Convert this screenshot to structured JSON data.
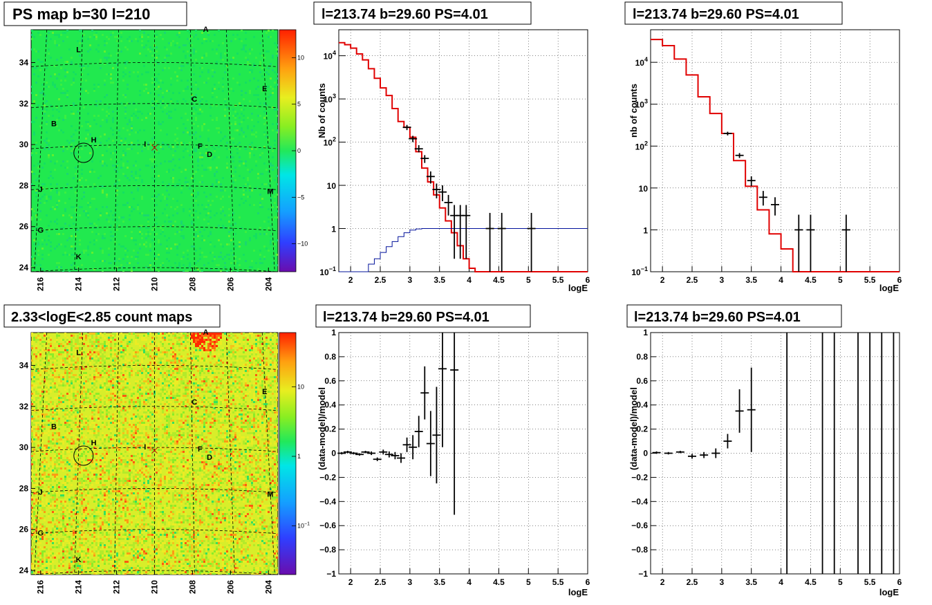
{
  "chart_data": [
    {
      "type": "heatmap",
      "title": "PS map b=30 l=210",
      "x_ticks": [
        "216",
        "214",
        "212",
        "210",
        "208",
        "206",
        "204"
      ],
      "y_ticks": [
        "24",
        "26",
        "28",
        "30",
        "32",
        "34"
      ],
      "xlim": [
        216.5,
        203.5
      ],
      "ylim": [
        23.8,
        35.6
      ],
      "colorbar_ticks": [
        "10",
        "5",
        "0",
        "−5",
        "−10"
      ],
      "colorbar_values": [
        10,
        5,
        0,
        -5,
        -10
      ],
      "colorbar_range": [
        -13,
        13
      ],
      "sources": [
        {
          "label": "A",
          "l": 207.3,
          "b": 35.5
        },
        {
          "label": "L",
          "l": 214.0,
          "b": 34.5
        },
        {
          "label": "E",
          "l": 204.2,
          "b": 32.6
        },
        {
          "label": "C",
          "l": 207.9,
          "b": 32.1
        },
        {
          "label": "B",
          "l": 215.3,
          "b": 30.9
        },
        {
          "label": "H",
          "l": 213.2,
          "b": 30.1
        },
        {
          "label": "I",
          "l": 210.5,
          "b": 29.9
        },
        {
          "label": "F",
          "l": 207.6,
          "b": 29.8
        },
        {
          "label": "D",
          "l": 207.1,
          "b": 29.4
        },
        {
          "label": "J",
          "l": 216.0,
          "b": 27.7
        },
        {
          "label": "M",
          "l": 203.9,
          "b": 27.6
        },
        {
          "label": "G",
          "l": 216.0,
          "b": 25.7
        },
        {
          "label": "K",
          "l": 214.0,
          "b": 24.4
        }
      ],
      "circle": {
        "l": 213.74,
        "b": 29.6
      },
      "cross": {
        "l": 210.0,
        "b": 29.85
      }
    },
    {
      "type": "line",
      "title": "l=213.74 b=29.60 PS=4.01",
      "xlabel": "logE",
      "ylabel": "Nb of counts",
      "log_y": true,
      "xlim": [
        1.8,
        6.0
      ],
      "ylim": [
        0.1,
        40000
      ],
      "x_ticks": [
        "2",
        "2.5",
        "3",
        "3.5",
        "4",
        "4.5",
        "5",
        "5.5",
        "6"
      ],
      "y_ticks": [
        {
          "v": 0.1,
          "label": "10",
          "sup": "−1"
        },
        {
          "v": 1,
          "label": "1",
          "sup": ""
        },
        {
          "v": 10,
          "label": "10",
          "sup": ""
        },
        {
          "v": 100,
          "label": "10",
          "sup": "2"
        },
        {
          "v": 1000,
          "label": "10",
          "sup": "3"
        },
        {
          "v": 10000,
          "label": "10",
          "sup": "4"
        }
      ],
      "model_edges": [
        1.8,
        1.9,
        2.0,
        2.1,
        2.2,
        2.3,
        2.4,
        2.5,
        2.6,
        2.7,
        2.8,
        2.9,
        3.0,
        3.1,
        3.2,
        3.3,
        3.4,
        3.5,
        3.6,
        3.7,
        3.8,
        3.9,
        4.0,
        4.1,
        4.2,
        4.3,
        4.4,
        4.5,
        4.6,
        4.7,
        4.8,
        4.9,
        5.0,
        5.1,
        5.2,
        5.3,
        5.4,
        5.5,
        5.6,
        5.7,
        5.8,
        5.9,
        6.0
      ],
      "model_values": [
        20000,
        18000,
        15000,
        11000,
        8000,
        5000,
        3000,
        1800,
        1200,
        600,
        300,
        220,
        130,
        60,
        25,
        12,
        6,
        3,
        1.5,
        0.8,
        0.4,
        0.2,
        0.12,
        0.1,
        0.1,
        0.1,
        0.1,
        0.1,
        0.1,
        0.1,
        0.1,
        0.1,
        0.1,
        0.1,
        0.1,
        0.1,
        0.1,
        0.1,
        0.1,
        0.1,
        0.1,
        0.1
      ],
      "bg_values": [
        0.05,
        0.05,
        0.05,
        0.05,
        0.1,
        0.15,
        0.2,
        0.28,
        0.38,
        0.5,
        0.65,
        0.8,
        0.92,
        0.98,
        1,
        1,
        1,
        1,
        1,
        1,
        1,
        1,
        1,
        1,
        1,
        1,
        1,
        1,
        1,
        1,
        1,
        1,
        1,
        1,
        1,
        1,
        1,
        1,
        1,
        1,
        1,
        1
      ],
      "data_points": [
        {
          "x": 2.95,
          "y": 220,
          "lo": 190,
          "hi": 250
        },
        {
          "x": 3.05,
          "y": 120,
          "lo": 100,
          "hi": 140
        },
        {
          "x": 3.15,
          "y": 70,
          "lo": 58,
          "hi": 85
        },
        {
          "x": 3.25,
          "y": 42,
          "lo": 33,
          "hi": 50
        },
        {
          "x": 3.35,
          "y": 16,
          "lo": 11,
          "hi": 21
        },
        {
          "x": 3.45,
          "y": 8,
          "lo": 5,
          "hi": 11
        },
        {
          "x": 3.55,
          "y": 7,
          "lo": 4.3,
          "hi": 10
        },
        {
          "x": 3.65,
          "y": 4,
          "lo": 2,
          "hi": 6
        },
        {
          "x": 3.75,
          "y": 2,
          "lo": 0.2,
          "hi": 3.5
        },
        {
          "x": 3.85,
          "y": 2,
          "lo": 0.2,
          "hi": 3.5
        },
        {
          "x": 3.95,
          "y": 2,
          "lo": 0.2,
          "hi": 3.5
        },
        {
          "x": 4.35,
          "y": 1,
          "lo": 0.1,
          "hi": 2.3
        },
        {
          "x": 4.55,
          "y": 1,
          "lo": 0.1,
          "hi": 2.3
        },
        {
          "x": 5.05,
          "y": 1,
          "lo": 0.1,
          "hi": 2.3
        }
      ]
    },
    {
      "type": "line",
      "title": "l=213.74 b=29.60 PS=4.01",
      "xlabel": "logE",
      "ylabel": "nb of counts",
      "log_y": true,
      "xlim": [
        1.8,
        6.0
      ],
      "ylim": [
        0.1,
        60000
      ],
      "x_ticks": [
        "2",
        "2.5",
        "3",
        "3.5",
        "4",
        "4.5",
        "5",
        "5.5",
        "6"
      ],
      "y_ticks": [
        {
          "v": 0.1,
          "label": "10",
          "sup": "−1"
        },
        {
          "v": 1,
          "label": "1",
          "sup": ""
        },
        {
          "v": 10,
          "label": "10",
          "sup": ""
        },
        {
          "v": 100,
          "label": "10",
          "sup": "2"
        },
        {
          "v": 1000,
          "label": "10",
          "sup": "3"
        },
        {
          "v": 10000,
          "label": "10",
          "sup": "4"
        }
      ],
      "model_edges": [
        1.8,
        2.0,
        2.2,
        2.4,
        2.6,
        2.8,
        3.0,
        3.2,
        3.4,
        3.6,
        3.8,
        4.0,
        4.2,
        4.4,
        4.6,
        4.8,
        5.0,
        5.2,
        5.4,
        5.6,
        5.8,
        6.0
      ],
      "model_values": [
        35000,
        25000,
        12000,
        5000,
        1500,
        600,
        200,
        45,
        11,
        3,
        0.8,
        0.35,
        0.1,
        0.1,
        0.1,
        0.1,
        0.1,
        0.1,
        0.1,
        0.1,
        0.1
      ],
      "bg_values": [],
      "data_points": [
        {
          "x": 3.1,
          "y": 200,
          "lo": 180,
          "hi": 220
        },
        {
          "x": 3.3,
          "y": 60,
          "lo": 52,
          "hi": 68
        },
        {
          "x": 3.5,
          "y": 15,
          "lo": 11,
          "hi": 19
        },
        {
          "x": 3.7,
          "y": 6,
          "lo": 3.8,
          "hi": 8.5
        },
        {
          "x": 3.9,
          "y": 4,
          "lo": 2.2,
          "hi": 6
        },
        {
          "x": 4.3,
          "y": 1,
          "lo": 0.1,
          "hi": 2.3
        },
        {
          "x": 4.5,
          "y": 1,
          "lo": 0.1,
          "hi": 2.3
        },
        {
          "x": 5.1,
          "y": 1,
          "lo": 0.1,
          "hi": 2.3
        }
      ]
    },
    {
      "type": "heatmap",
      "title": "2.33<logE<2.85 count maps",
      "x_ticks": [
        "216",
        "214",
        "212",
        "210",
        "208",
        "206",
        "204"
      ],
      "y_ticks": [
        "24",
        "26",
        "28",
        "30",
        "32",
        "34"
      ],
      "xlim": [
        216.5,
        203.5
      ],
      "ylim": [
        23.8,
        35.6
      ],
      "colorbar_ticks": [
        "10",
        "1"
      ],
      "colorbar_values": [
        10,
        1
      ],
      "colorbar_extra": {
        "label": "10",
        "sup": "−1",
        "v": 0.1
      },
      "colorbar_log_range": [
        0.02,
        60
      ],
      "sources": [
        {
          "label": "A",
          "l": 207.3,
          "b": 35.5
        },
        {
          "label": "L",
          "l": 214.0,
          "b": 34.5
        },
        {
          "label": "E",
          "l": 204.2,
          "b": 32.6
        },
        {
          "label": "C",
          "l": 207.9,
          "b": 32.1
        },
        {
          "label": "B",
          "l": 215.3,
          "b": 30.9
        },
        {
          "label": "H",
          "l": 213.2,
          "b": 30.1
        },
        {
          "label": "I",
          "l": 210.5,
          "b": 29.9
        },
        {
          "label": "F",
          "l": 207.6,
          "b": 29.8
        },
        {
          "label": "D",
          "l": 207.1,
          "b": 29.4
        },
        {
          "label": "J",
          "l": 216.0,
          "b": 27.7
        },
        {
          "label": "M",
          "l": 203.9,
          "b": 27.6
        },
        {
          "label": "G",
          "l": 216.0,
          "b": 25.7
        },
        {
          "label": "K",
          "l": 214.0,
          "b": 24.4
        }
      ],
      "circle": {
        "l": 213.74,
        "b": 29.6
      },
      "cross": {
        "l": 210.0,
        "b": 29.85
      }
    },
    {
      "type": "scatter",
      "title": "l=213.74 b=29.60 PS=4.01",
      "xlabel": "logE",
      "ylabel": "(data-model)/model",
      "xlim": [
        1.8,
        6.0
      ],
      "ylim": [
        -1,
        1
      ],
      "x_ticks": [
        "2",
        "2.5",
        "3",
        "3.5",
        "4",
        "4.5",
        "5",
        "5.5",
        "6"
      ],
      "y_ticks": [
        "−1",
        "−0.8",
        "−0.6",
        "−0.4",
        "−0.2",
        "0",
        "0.2",
        "0.4",
        "0.6",
        "0.8",
        "1"
      ],
      "data_points": [
        {
          "x": 1.85,
          "y": 0.0,
          "e": 0.01
        },
        {
          "x": 1.95,
          "y": 0.01,
          "e": 0.01
        },
        {
          "x": 2.05,
          "y": 0.0,
          "e": 0.01
        },
        {
          "x": 2.15,
          "y": -0.01,
          "e": 0.01
        },
        {
          "x": 2.25,
          "y": 0.01,
          "e": 0.01
        },
        {
          "x": 2.35,
          "y": 0.0,
          "e": 0.015
        },
        {
          "x": 2.45,
          "y": -0.05,
          "e": 0.015
        },
        {
          "x": 2.55,
          "y": 0.01,
          "e": 0.02
        },
        {
          "x": 2.65,
          "y": -0.01,
          "e": 0.025
        },
        {
          "x": 2.75,
          "y": -0.02,
          "e": 0.03
        },
        {
          "x": 2.85,
          "y": -0.04,
          "e": 0.04
        },
        {
          "x": 2.95,
          "y": 0.07,
          "e": 0.06
        },
        {
          "x": 3.05,
          "y": 0.05,
          "e": 0.1
        },
        {
          "x": 3.15,
          "y": 0.18,
          "e": 0.13
        },
        {
          "x": 3.25,
          "y": 0.5,
          "e": 0.22
        },
        {
          "x": 3.35,
          "y": 0.08,
          "e": 0.27
        },
        {
          "x": 3.45,
          "y": 0.15,
          "e": 0.4
        },
        {
          "x": 3.55,
          "y": 0.7,
          "e": 0.65
        },
        {
          "x": 3.75,
          "y": 0.69,
          "e": 1.2
        }
      ]
    },
    {
      "type": "scatter",
      "title": "l=213.74 b=29.60 PS=4.01",
      "xlabel": "logE",
      "ylabel": "(data-model)/model",
      "xlim": [
        1.8,
        6.0
      ],
      "ylim": [
        -1,
        1
      ],
      "x_ticks": [
        "2",
        "2.5",
        "3",
        "3.5",
        "4",
        "4.5",
        "5",
        "5.5",
        "6"
      ],
      "y_ticks": [
        "−1",
        "−0.8",
        "−0.6",
        "−0.4",
        "−0.2",
        "0",
        "0.2",
        "0.4",
        "0.6",
        "0.8",
        "1"
      ],
      "data_points": [
        {
          "x": 1.9,
          "y": 0.005,
          "e": 0.01
        },
        {
          "x": 2.1,
          "y": 0.0,
          "e": 0.01
        },
        {
          "x": 2.3,
          "y": 0.01,
          "e": 0.01
        },
        {
          "x": 2.5,
          "y": -0.025,
          "e": 0.02
        },
        {
          "x": 2.7,
          "y": -0.015,
          "e": 0.025
        },
        {
          "x": 2.9,
          "y": 0.0,
          "e": 0.04
        },
        {
          "x": 3.1,
          "y": 0.1,
          "e": 0.06
        },
        {
          "x": 3.3,
          "y": 0.35,
          "e": 0.18
        },
        {
          "x": 3.5,
          "y": 0.36,
          "e": 0.35
        }
      ],
      "full_bars_x": [
        4.1,
        4.7,
        4.9,
        5.3,
        5.5,
        5.7,
        5.9
      ]
    }
  ]
}
